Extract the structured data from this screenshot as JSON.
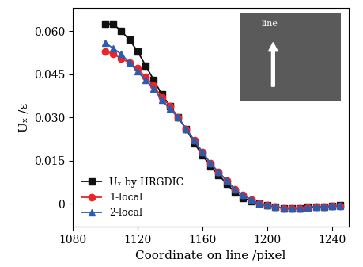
{
  "chart_data": {
    "type": "line",
    "x_label": "Coordinate on line /pixel",
    "y_label": "Uₓ /ε",
    "annotations": [
      "line"
    ],
    "x": [
      1100,
      1105,
      1110,
      1115,
      1120,
      1125,
      1130,
      1135,
      1140,
      1145,
      1150,
      1155,
      1160,
      1165,
      1170,
      1175,
      1180,
      1185,
      1190,
      1195,
      1200,
      1205,
      1210,
      1215,
      1220,
      1225,
      1230,
      1235,
      1240,
      1245
    ],
    "series": [
      {
        "name": "Uₓ by HRGDIC",
        "color": "#111111",
        "marker": "square",
        "values": [
          0.0625,
          0.0625,
          0.06,
          0.057,
          0.053,
          0.048,
          0.043,
          0.038,
          0.034,
          0.03,
          0.026,
          0.021,
          0.017,
          0.013,
          0.01,
          0.007,
          0.004,
          0.002,
          0.001,
          0.0,
          -0.0005,
          -0.001,
          -0.0015,
          -0.0015,
          -0.0015,
          -0.001,
          -0.001,
          -0.001,
          -0.0008,
          -0.0005
        ]
      },
      {
        "name": "1-local",
        "color": "#e8252a",
        "marker": "circle",
        "values": [
          0.053,
          0.052,
          0.0505,
          0.049,
          0.047,
          0.044,
          0.041,
          0.037,
          0.034,
          0.03,
          0.026,
          0.022,
          0.018,
          0.014,
          0.011,
          0.008,
          0.005,
          0.003,
          0.0015,
          0.0,
          -0.0005,
          -0.001,
          -0.0015,
          -0.0015,
          -0.0015,
          -0.0012,
          -0.001,
          -0.001,
          -0.0008,
          -0.0006
        ]
      },
      {
        "name": "2-local",
        "color": "#2a5db0",
        "marker": "triangle",
        "values": [
          0.056,
          0.054,
          0.052,
          0.049,
          0.046,
          0.043,
          0.04,
          0.036,
          0.033,
          0.03,
          0.026,
          0.022,
          0.018,
          0.014,
          0.011,
          0.008,
          0.005,
          0.003,
          0.0015,
          0.0,
          -0.0005,
          -0.001,
          -0.0015,
          -0.0015,
          -0.0015,
          -0.0012,
          -0.001,
          -0.001,
          -0.0008,
          -0.0006
        ]
      }
    ],
    "xlim": [
      1080,
      1250
    ],
    "xticks": [
      1080,
      1120,
      1160,
      1200,
      1240
    ],
    "ylim": [
      -0.008,
      0.068
    ],
    "yticks": [
      {
        "value": 0,
        "label": "0"
      },
      {
        "value": 0.015,
        "label": "0.015"
      },
      {
        "value": 0.03,
        "label": "0.030"
      },
      {
        "value": 0.045,
        "label": "0.045"
      },
      {
        "value": 0.06,
        "label": "0.060"
      }
    ],
    "legend": "lower left"
  }
}
